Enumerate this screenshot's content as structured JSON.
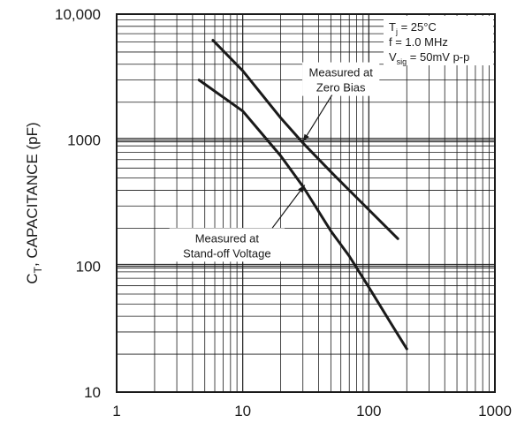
{
  "chart_data": {
    "type": "line",
    "x_scale": "log",
    "y_scale": "log",
    "xlim": [
      1,
      1000
    ],
    "ylim": [
      10,
      10000
    ],
    "xlabel": "",
    "ylabel": {
      "main": "C",
      "sub": "T",
      "rest": ", CAPACITANCE (pF)"
    },
    "x_ticks": [
      {
        "value": 1,
        "label": "1"
      },
      {
        "value": 10,
        "label": "10"
      },
      {
        "value": 100,
        "label": "100"
      },
      {
        "value": 1000,
        "label": "1000"
      }
    ],
    "y_ticks": [
      {
        "value": 10,
        "label": "10"
      },
      {
        "value": 100,
        "label": "100"
      },
      {
        "value": 1000,
        "label": "1000"
      },
      {
        "value": 10000,
        "label": "10,000"
      }
    ],
    "grid": true,
    "series": [
      {
        "name": "Measured at Zero Bias",
        "color": "#1a1a1a",
        "x": [
          5.8,
          10,
          20,
          30,
          50,
          100,
          170
        ],
        "y": [
          6200,
          3550,
          1500,
          950,
          560,
          280,
          165
        ]
      },
      {
        "name": "Measured at Stand-off Voltage",
        "color": "#1a1a1a",
        "x": [
          4.5,
          10,
          20,
          30,
          50,
          70,
          100,
          150,
          200
        ],
        "y": [
          3000,
          1700,
          750,
          430,
          190,
          120,
          68,
          35,
          22
        ]
      }
    ],
    "annotations": [
      {
        "name": "annotation-zero-bias",
        "lines": [
          "Measured at",
          "Zero Bias"
        ],
        "text_at": [
          60,
          3000
        ],
        "arrow_to": [
          30,
          970
        ]
      },
      {
        "name": "annotation-standoff",
        "lines": [
          "Measured at",
          "Stand-off Voltage"
        ],
        "text_at": [
          7.5,
          145
        ],
        "arrow_to": [
          31,
          440
        ]
      }
    ],
    "conditions": [
      {
        "main": "T",
        "sub": "j",
        "rest": " = 25°C"
      },
      {
        "main": "f = 1.0 MHz",
        "sub": "",
        "rest": ""
      },
      {
        "main": "V",
        "sub": "sig",
        "rest": " = 50mV p-p"
      }
    ]
  }
}
